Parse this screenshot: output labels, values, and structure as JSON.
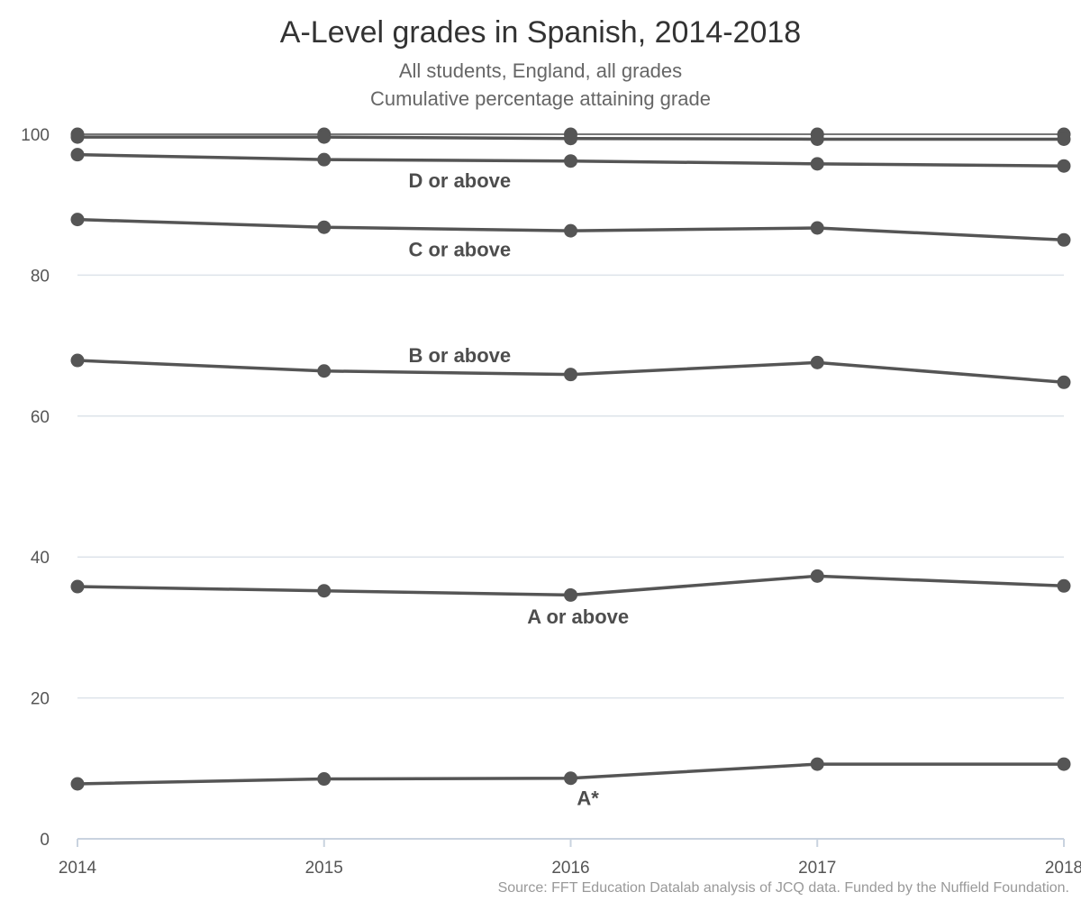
{
  "chart_data": {
    "type": "line",
    "title": "A-Level grades in Spanish, 2014-2018",
    "subtitle_lines": [
      "All students, England, all grades",
      "Cumulative percentage attaining grade"
    ],
    "source": "Source: FFT Education Datalab analysis of JCQ data. Funded by the Nuffield Foundation.",
    "x": [
      "2014",
      "2015",
      "2016",
      "2017",
      "2018"
    ],
    "ylim": [
      0,
      100
    ],
    "yticks": [
      "0",
      "20",
      "40",
      "60",
      "80",
      "100"
    ],
    "grid": true,
    "line_color": "#555555",
    "series": [
      {
        "name": "",
        "values": [
          100,
          100,
          100,
          100,
          100
        ]
      },
      {
        "name": "",
        "values": [
          99.6,
          99.6,
          99.4,
          99.3,
          99.3
        ]
      },
      {
        "name": "D or above",
        "values": [
          97.1,
          96.4,
          96.2,
          95.8,
          95.5
        ]
      },
      {
        "name": "C or above",
        "values": [
          87.9,
          86.8,
          86.3,
          86.7,
          85.0
        ]
      },
      {
        "name": "B or above",
        "values": [
          67.9,
          66.4,
          65.9,
          67.6,
          64.8
        ]
      },
      {
        "name": "A or above",
        "values": [
          35.8,
          35.2,
          34.6,
          37.3,
          35.9
        ]
      },
      {
        "name": "A*",
        "values": [
          7.8,
          8.5,
          8.6,
          10.6,
          10.6
        ]
      }
    ]
  }
}
